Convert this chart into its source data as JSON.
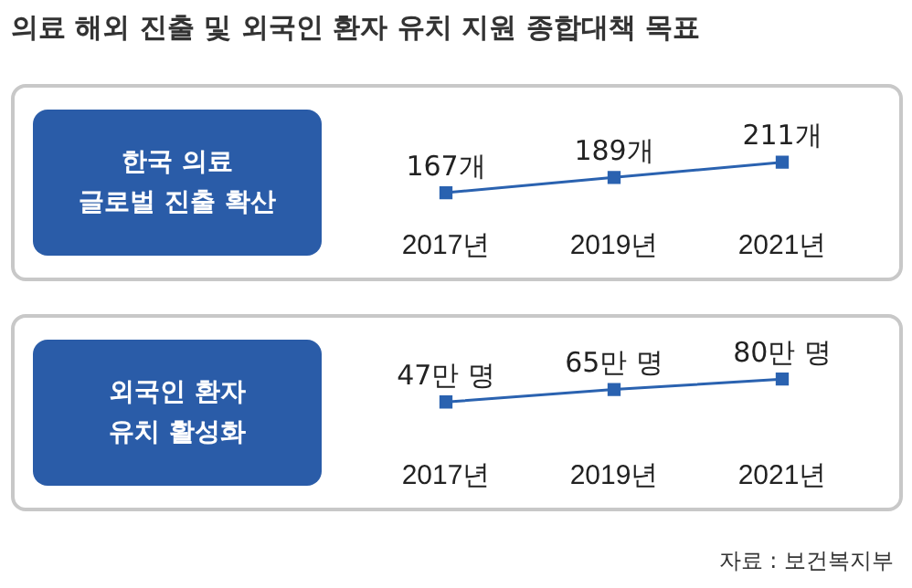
{
  "chart_data": [
    {
      "type": "line",
      "title": "의료 해외 진출 및 외국인 환자 유치 지원 종합대책 목표",
      "subtitle": "한국 의료\n글로벌 진출 확산",
      "categories": [
        "2017년",
        "2019년",
        "2021년"
      ],
      "series": [
        {
          "color": "#2a62b0",
          "values": [
            167,
            189,
            211
          ],
          "value_labels": [
            "167개",
            "189개",
            "211개"
          ]
        }
      ],
      "marker": "square",
      "tick_labels": "x"
    },
    {
      "type": "line",
      "subtitle": "외국인 환자\n유치 활성화",
      "categories": [
        "2017년",
        "2019년",
        "2021년"
      ],
      "series": [
        {
          "color": "#2a62b0",
          "values": [
            47,
            65,
            80
          ],
          "value_labels": [
            "47만 명",
            "65만 명",
            "80만 명"
          ]
        }
      ],
      "marker": "square",
      "tick_labels": "x",
      "annotations": [
        "자료 : 보건복지부"
      ]
    }
  ]
}
